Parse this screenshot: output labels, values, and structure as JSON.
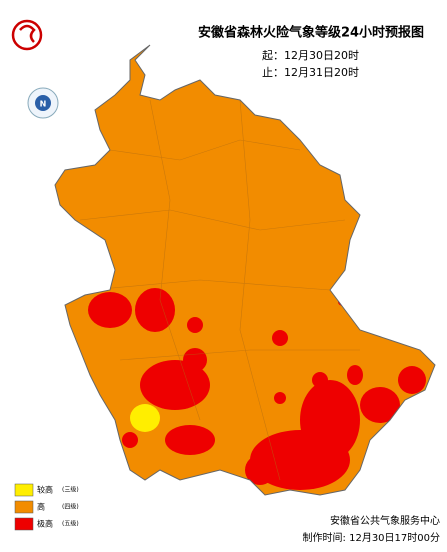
{
  "header": {
    "title": "安徽省森林火险气象等级24小时预报图",
    "valid_from": "起：12月30日20时",
    "valid_to": "止：12月31日20时"
  },
  "compass": "N",
  "legend": [
    {
      "label": "较高",
      "level": "(三级)",
      "color": "#ffee00"
    },
    {
      "label": "高",
      "level": "(四级)",
      "color": "#f28c00"
    },
    {
      "label": "极高",
      "level": "(五级)",
      "color": "#ee0000"
    }
  ],
  "footer": {
    "organization": "安徽省公共气象服务中心",
    "made_time": "制作时间: 12月30日17时00分"
  }
}
